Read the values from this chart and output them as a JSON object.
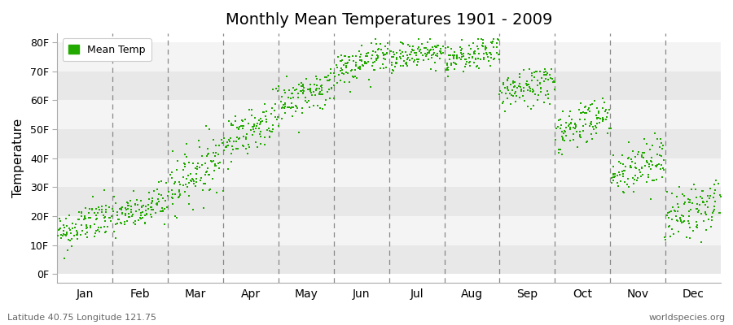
{
  "title": "Monthly Mean Temperatures 1901 - 2009",
  "ylabel": "Temperature",
  "legend_label": "Mean Temp",
  "latitude_label": "Latitude 40.75 Longitude 121.75",
  "credit_label": "worldspecies.org",
  "background_color": "#ffffff",
  "plot_bg_color": "#ffffff",
  "dot_color": "#22aa00",
  "dot_size": 3.5,
  "yticks": [
    0,
    10,
    20,
    30,
    40,
    50,
    60,
    70,
    80
  ],
  "ytick_labels": [
    "0F",
    "10F",
    "20F",
    "30F",
    "40F",
    "50F",
    "60F",
    "70F",
    "80F"
  ],
  "ylim": [
    -3,
    83
  ],
  "xlim": [
    0,
    12
  ],
  "months": [
    "Jan",
    "Feb",
    "Mar",
    "Apr",
    "May",
    "Jun",
    "Jul",
    "Aug",
    "Sep",
    "Oct",
    "Nov",
    "Dec"
  ],
  "month_means_start": [
    14,
    19,
    30,
    46,
    59,
    70,
    74,
    73,
    62,
    49,
    34,
    19
  ],
  "month_means_end": [
    20,
    25,
    40,
    54,
    65,
    75,
    78,
    77,
    67,
    55,
    40,
    25
  ],
  "month_stds": [
    3.5,
    3.5,
    5.0,
    4.0,
    3.5,
    3.0,
    2.5,
    2.5,
    3.5,
    4.0,
    4.5,
    4.5
  ],
  "n_years": 109,
  "seed": 42,
  "band_colors": [
    "#e8e8e8",
    "#f4f4f4"
  ],
  "dashed_line_color": "#888888",
  "spine_color": "#aaaaaa"
}
